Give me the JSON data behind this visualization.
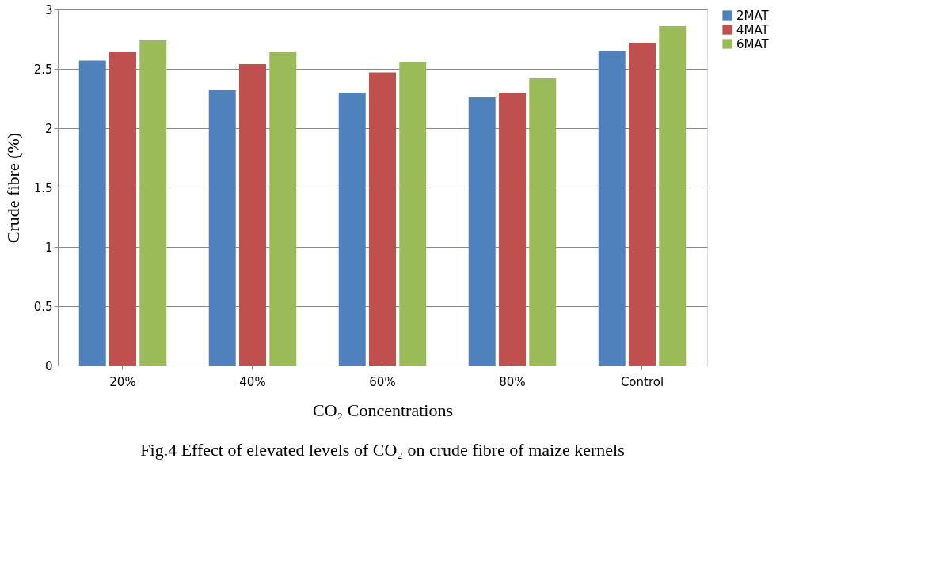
{
  "chart_data": {
    "type": "bar",
    "title": "Fig.4 Effect of elevated levels of CO₂ on crude fibre of maize kernels",
    "xlabel": "CO₂ Concentrations",
    "ylabel": "Crude fibre (%)",
    "categories": [
      "20%",
      "40%",
      "60%",
      "80%",
      "Control"
    ],
    "series": [
      {
        "name": "2MAT",
        "color": "#4f81bd",
        "values": [
          2.57,
          2.32,
          2.3,
          2.26,
          2.65
        ]
      },
      {
        "name": "4MAT",
        "color": "#c0504d",
        "values": [
          2.64,
          2.54,
          2.47,
          2.3,
          2.72
        ]
      },
      {
        "name": "6MAT",
        "color": "#9bbb59",
        "values": [
          2.74,
          2.64,
          2.56,
          2.42,
          2.86
        ]
      }
    ],
    "ylim": [
      0,
      3
    ],
    "yticks": [
      0,
      0.5,
      1,
      1.5,
      2,
      2.5,
      3
    ],
    "grid": "y",
    "legend": "top right"
  }
}
